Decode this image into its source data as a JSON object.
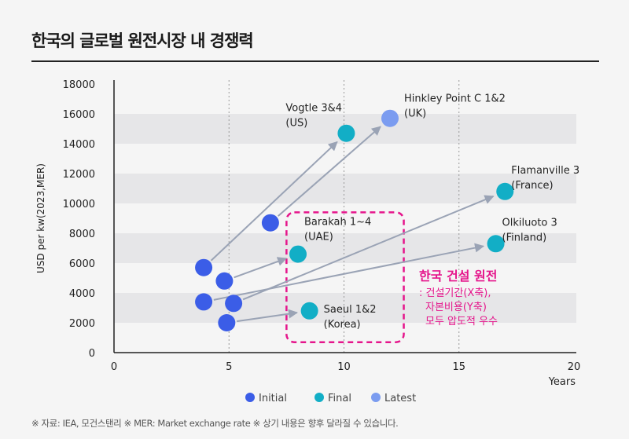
{
  "title": "한국의 글로벌 원전시장 내 경쟁력",
  "footnote": "※ 자료: IEA, 모건스탠리 ※ MER: Market exchange rate ※ 상기 내용은 향후 달라질 수 있습니다.",
  "chart_data": {
    "type": "scatter",
    "title": "",
    "xlabel": "Years",
    "ylabel": "USD per kw(2023,MER)",
    "xlim": [
      0,
      20
    ],
    "ylim": [
      0,
      18000
    ],
    "xticks": [
      0,
      5,
      10,
      15,
      20
    ],
    "yticks": [
      0,
      2000,
      4000,
      6000,
      8000,
      10000,
      12000,
      14000,
      16000,
      18000
    ],
    "legend": {
      "placement": "bottom",
      "entries": [
        {
          "name": "Initial",
          "color": "#3b5de7"
        },
        {
          "name": "Final",
          "color": "#12aec6"
        },
        {
          "name": "Latest",
          "color": "#7b9cf0"
        }
      ]
    },
    "projects": [
      {
        "label": [
          "Vogtle 3&4",
          "(US)"
        ],
        "initial": [
          3.9,
          5700
        ],
        "end": [
          10.1,
          14700
        ],
        "end_type": "Final"
      },
      {
        "label": [
          "Hinkley Point C 1&2",
          "(UK)"
        ],
        "initial": [
          6.8,
          8700
        ],
        "end": [
          12.0,
          15700
        ],
        "end_type": "Latest"
      },
      {
        "label": [
          "Barakah 1~4",
          "(UAE)"
        ],
        "initial": [
          4.8,
          4800
        ],
        "end": [
          8.0,
          6600
        ],
        "end_type": "Final"
      },
      {
        "label": [
          "Flamanville 3",
          "(France)"
        ],
        "initial": [
          5.2,
          3300
        ],
        "end": [
          17.0,
          10800
        ],
        "end_type": "Final"
      },
      {
        "label": [
          "Olkiluoto 3",
          "(Finland)"
        ],
        "initial": [
          3.9,
          3400
        ],
        "end": [
          16.6,
          7300
        ],
        "end_type": "Final"
      },
      {
        "label": [
          "Saeul 1&2",
          "(Korea)"
        ],
        "initial": [
          4.9,
          2000
        ],
        "end": [
          8.5,
          2800
        ],
        "end_type": "Final"
      }
    ],
    "annotation": {
      "title": "한국 건설 원전",
      "lines": [
        ": 건설기간(X축),",
        "자본비용(Y축)",
        "모두 압도적 우수"
      ],
      "color": "#e5168c",
      "box_x": [
        7.5,
        12.6
      ],
      "box_y": [
        700,
        9400
      ]
    },
    "bands": [
      [
        2000,
        4000
      ],
      [
        6000,
        8000
      ],
      [
        10000,
        12000
      ],
      [
        14000,
        16000
      ]
    ],
    "vertical_gridlines": [
      5,
      10,
      15
    ]
  }
}
